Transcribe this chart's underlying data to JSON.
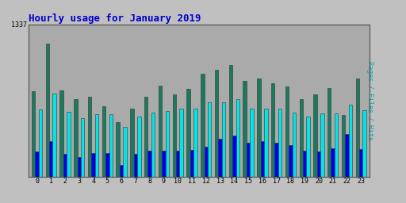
{
  "title": "Hourly usage for January 2019",
  "title_color": "#0000cc",
  "title_fontsize": 9,
  "hours": [
    0,
    1,
    2,
    3,
    4,
    5,
    6,
    7,
    8,
    9,
    10,
    11,
    12,
    13,
    14,
    15,
    16,
    17,
    18,
    19,
    20,
    21,
    22,
    23
  ],
  "pages": [
    750,
    1170,
    760,
    680,
    700,
    620,
    480,
    600,
    700,
    800,
    720,
    770,
    900,
    940,
    980,
    840,
    860,
    820,
    790,
    680,
    720,
    780,
    540,
    860
  ],
  "files": [
    220,
    310,
    200,
    175,
    210,
    205,
    100,
    200,
    230,
    225,
    225,
    235,
    260,
    330,
    360,
    295,
    310,
    295,
    280,
    225,
    220,
    250,
    375,
    245
  ],
  "hits": [
    590,
    730,
    570,
    510,
    550,
    550,
    440,
    530,
    565,
    575,
    595,
    595,
    655,
    655,
    680,
    595,
    595,
    595,
    560,
    530,
    555,
    555,
    630,
    585
  ],
  "pages_color": "#1a7a5e",
  "files_color": "#0000ee",
  "hits_color": "#00e5e5",
  "bg_color": "#c0c0c0",
  "plot_bg_color": "#aaaaaa",
  "ylabel": "Pages / Files / Hits",
  "ylabel_color": "#00aaaa",
  "ymax": 1337,
  "ytick_label": "1337",
  "bar_width": 0.25,
  "grid_color": "#999999"
}
